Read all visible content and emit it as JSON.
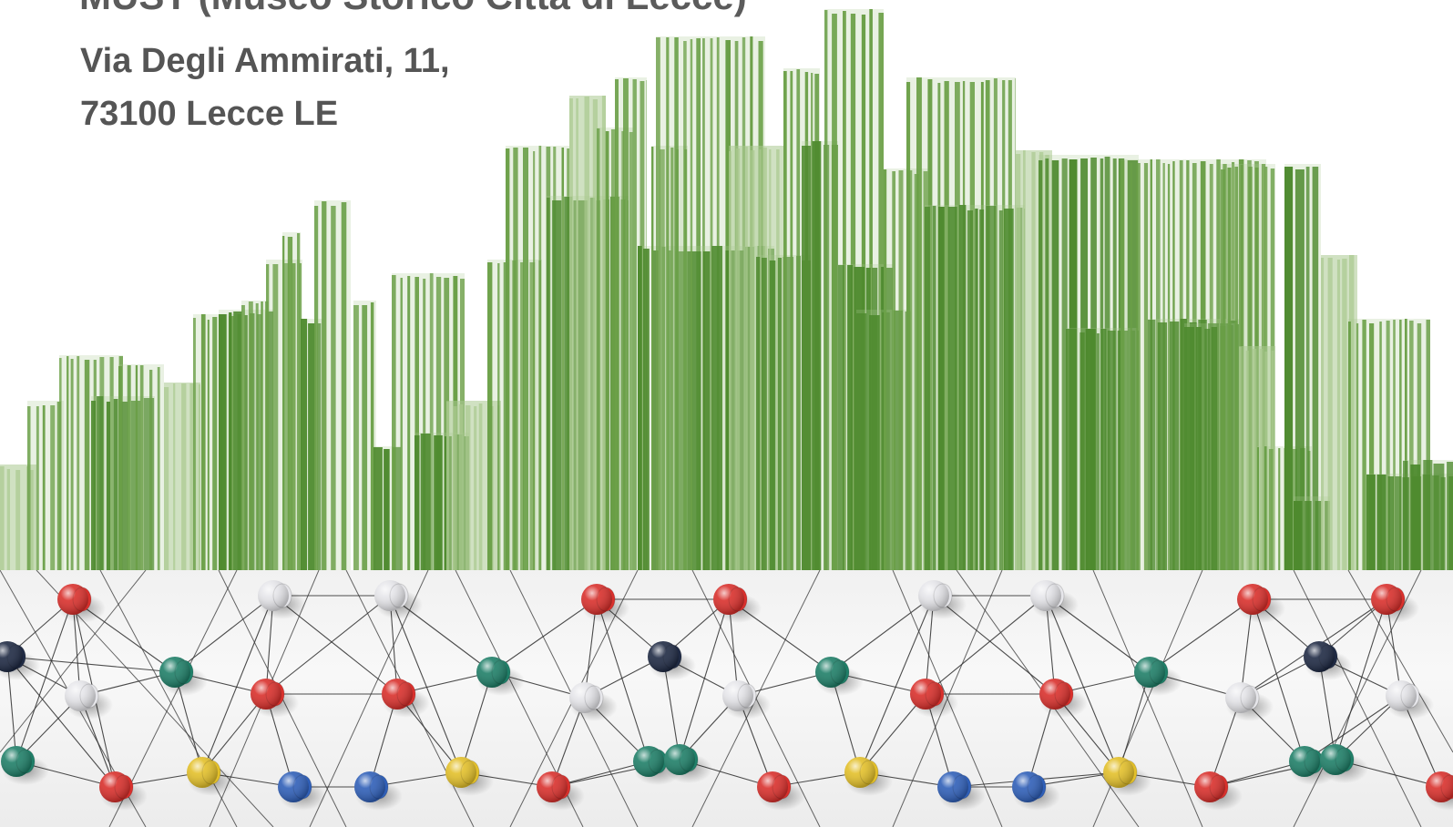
{
  "slide": {
    "title": "MUST (Museo Storico Città di Lecce)",
    "address_lines": [
      "Via Degli Ammirati, 11,",
      "73100 Lecce LE"
    ]
  },
  "colors": {
    "green_dark": "#4e8a2e",
    "green_mid": "#6a9f47",
    "green_light": "#a9c98f",
    "text_gray": "#555555",
    "pin_red": "#d9302c",
    "pin_white": "#e6e6ea",
    "pin_teal": "#1f7f68",
    "pin_yellow": "#e3c02a",
    "pin_blue": "#2f5fb8",
    "pin_navy": "#1f2a44"
  },
  "images": {
    "skyline": "green-bar-skyline-illustration",
    "network": "pushpin-network-photo"
  }
}
